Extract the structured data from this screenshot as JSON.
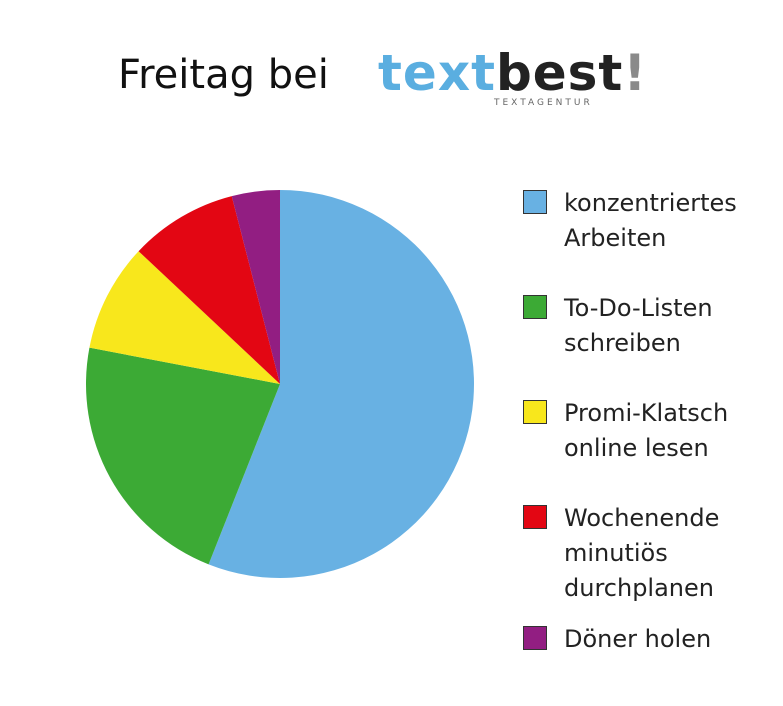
{
  "chart_data": {
    "type": "pie",
    "title": "Freitag bei",
    "logo": {
      "word1": "text",
      "word2": "best",
      "mark": "!",
      "tagline": "TEXTAGENTUR"
    },
    "categories": [
      "konzentriertes Arbeiten",
      "To-Do-Listen schreiben",
      "Promi-Klatsch online lesen",
      "Wochenende minutiös durchplanen",
      "Döner holen"
    ],
    "values": [
      56,
      22,
      9,
      9,
      4
    ],
    "colors": [
      "#68b1e3",
      "#3caa35",
      "#f8e71c",
      "#e30613",
      "#921e82"
    ]
  }
}
